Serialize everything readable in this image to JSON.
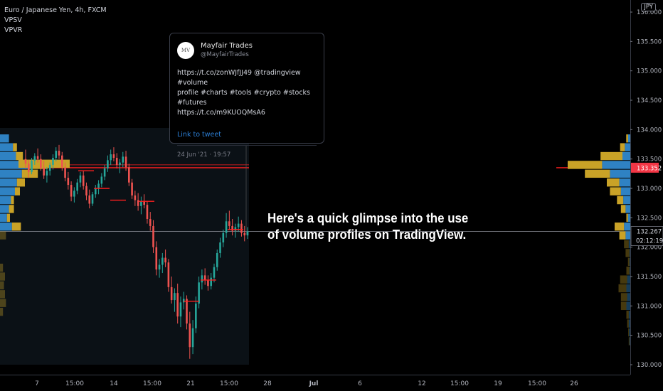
{
  "legend": {
    "symbol": "Euro / Japanese Yen, 4h, FXCM",
    "indicators": [
      "VPSV",
      "VPVR"
    ]
  },
  "axis": {
    "currency": "JPY"
  },
  "tweet": {
    "name": "Mayfair Trades",
    "handle": "@MayfairTrades",
    "avatar_text": "MV",
    "lines": [
      "https://t.co/zonWJfJJ49 @tradingview #volume",
      "profile #charts #tools #crypto #stocks #futures",
      "https://t.co/m9KUOQMsA6"
    ],
    "link": "Link to tweet",
    "date": "24 Jun '21 · 19:57"
  },
  "caption": {
    "line1": "Here's a quick glimpse into the use",
    "line2": "of volume profiles on TradingView."
  },
  "colors": {
    "up_volume": "#c9a227",
    "down_volume": "#2f82c3",
    "poc_line": "#ff1f1f",
    "price_line": "#9598a1",
    "background": "#000000"
  },
  "chart_data": {
    "type": "candlestick",
    "ylim": [
      129.95,
      136.15
    ],
    "y_ticks": [
      "136.000",
      "135.500",
      "135.000",
      "134.500",
      "134.000",
      "133.500",
      "133.000",
      "132.500",
      "132.000",
      "131.500",
      "131.000",
      "130.500",
      "130.000"
    ],
    "y_tick_values": [
      136.0,
      135.5,
      135.0,
      134.5,
      134.0,
      133.5,
      133.0,
      132.5,
      132.0,
      131.5,
      131.0,
      130.5,
      130.0
    ],
    "x_ticks": [
      "7",
      "15:00",
      "14",
      "15:00",
      "21",
      "15:00",
      "28",
      "Jul",
      "6",
      "12",
      "15:00",
      "19",
      "15:00",
      "26"
    ],
    "poc_price": 133.352,
    "poc_label": "133.352",
    "last_price": 132.267,
    "last_price_label": "132.267",
    "countdown": "02:12:19",
    "candles": [
      {
        "o": 133.5,
        "h": 133.66,
        "l": 133.34,
        "c": 133.42
      },
      {
        "o": 133.42,
        "h": 133.48,
        "l": 133.18,
        "c": 133.28
      },
      {
        "o": 133.28,
        "h": 133.52,
        "l": 133.24,
        "c": 133.47
      },
      {
        "o": 133.47,
        "h": 133.6,
        "l": 133.4,
        "c": 133.55
      },
      {
        "o": 133.55,
        "h": 133.68,
        "l": 133.44,
        "c": 133.5
      },
      {
        "o": 133.5,
        "h": 133.58,
        "l": 133.3,
        "c": 133.35
      },
      {
        "o": 133.35,
        "h": 133.47,
        "l": 133.16,
        "c": 133.22
      },
      {
        "o": 133.22,
        "h": 133.36,
        "l": 133.1,
        "c": 133.3
      },
      {
        "o": 133.3,
        "h": 133.44,
        "l": 133.22,
        "c": 133.4
      },
      {
        "o": 133.4,
        "h": 133.58,
        "l": 133.32,
        "c": 133.52
      },
      {
        "o": 133.52,
        "h": 133.7,
        "l": 133.46,
        "c": 133.64
      },
      {
        "o": 133.64,
        "h": 133.74,
        "l": 133.5,
        "c": 133.56
      },
      {
        "o": 133.56,
        "h": 133.62,
        "l": 133.3,
        "c": 133.36
      },
      {
        "o": 133.36,
        "h": 133.44,
        "l": 133.12,
        "c": 133.18
      },
      {
        "o": 133.18,
        "h": 133.28,
        "l": 132.98,
        "c": 133.06
      },
      {
        "o": 133.06,
        "h": 133.12,
        "l": 132.78,
        "c": 132.86
      },
      {
        "o": 132.86,
        "h": 133.02,
        "l": 132.76,
        "c": 132.96
      },
      {
        "o": 132.96,
        "h": 133.16,
        "l": 132.9,
        "c": 133.1
      },
      {
        "o": 133.1,
        "h": 133.28,
        "l": 133.02,
        "c": 133.22
      },
      {
        "o": 133.22,
        "h": 133.3,
        "l": 132.98,
        "c": 133.04
      },
      {
        "o": 133.04,
        "h": 133.1,
        "l": 132.8,
        "c": 132.88
      },
      {
        "o": 132.88,
        "h": 132.98,
        "l": 132.66,
        "c": 132.74
      },
      {
        "o": 132.74,
        "h": 132.94,
        "l": 132.7,
        "c": 132.9
      },
      {
        "o": 132.9,
        "h": 133.06,
        "l": 132.84,
        "c": 133.0
      },
      {
        "o": 133.0,
        "h": 133.14,
        "l": 132.9,
        "c": 133.08
      },
      {
        "o": 133.08,
        "h": 133.26,
        "l": 133.02,
        "c": 133.2
      },
      {
        "o": 133.2,
        "h": 133.4,
        "l": 133.14,
        "c": 133.34
      },
      {
        "o": 133.34,
        "h": 133.56,
        "l": 133.28,
        "c": 133.48
      },
      {
        "o": 133.48,
        "h": 133.66,
        "l": 133.4,
        "c": 133.58
      },
      {
        "o": 133.58,
        "h": 133.7,
        "l": 133.46,
        "c": 133.52
      },
      {
        "o": 133.52,
        "h": 133.6,
        "l": 133.34,
        "c": 133.4
      },
      {
        "o": 133.4,
        "h": 133.5,
        "l": 133.26,
        "c": 133.44
      },
      {
        "o": 133.44,
        "h": 133.62,
        "l": 133.36,
        "c": 133.54
      },
      {
        "o": 133.54,
        "h": 133.64,
        "l": 133.3,
        "c": 133.36
      },
      {
        "o": 133.36,
        "h": 133.42,
        "l": 133.04,
        "c": 133.1
      },
      {
        "o": 133.1,
        "h": 133.16,
        "l": 132.82,
        "c": 132.88
      },
      {
        "o": 132.88,
        "h": 132.96,
        "l": 132.7,
        "c": 132.8
      },
      {
        "o": 132.8,
        "h": 132.92,
        "l": 132.62,
        "c": 132.7
      },
      {
        "o": 132.7,
        "h": 132.86,
        "l": 132.56,
        "c": 132.78
      },
      {
        "o": 132.78,
        "h": 132.9,
        "l": 132.66,
        "c": 132.72
      },
      {
        "o": 132.72,
        "h": 132.78,
        "l": 132.4,
        "c": 132.48
      },
      {
        "o": 132.48,
        "h": 132.6,
        "l": 132.28,
        "c": 132.36
      },
      {
        "o": 132.36,
        "h": 132.46,
        "l": 131.9,
        "c": 132.0
      },
      {
        "o": 132.0,
        "h": 132.1,
        "l": 131.52,
        "c": 131.62
      },
      {
        "o": 131.62,
        "h": 131.8,
        "l": 131.48,
        "c": 131.7
      },
      {
        "o": 131.7,
        "h": 131.9,
        "l": 131.56,
        "c": 131.82
      },
      {
        "o": 131.82,
        "h": 131.96,
        "l": 131.66,
        "c": 131.74
      },
      {
        "o": 131.74,
        "h": 131.8,
        "l": 131.24,
        "c": 131.32
      },
      {
        "o": 131.32,
        "h": 131.5,
        "l": 131.04,
        "c": 131.1
      },
      {
        "o": 131.1,
        "h": 131.3,
        "l": 130.9,
        "c": 131.22
      },
      {
        "o": 131.22,
        "h": 131.38,
        "l": 130.7,
        "c": 130.82
      },
      {
        "o": 130.82,
        "h": 131.16,
        "l": 130.64,
        "c": 131.06
      },
      {
        "o": 131.06,
        "h": 131.24,
        "l": 130.94,
        "c": 131.12
      },
      {
        "o": 131.12,
        "h": 131.18,
        "l": 130.6,
        "c": 130.7
      },
      {
        "o": 130.7,
        "h": 130.9,
        "l": 130.1,
        "c": 130.3
      },
      {
        "o": 130.3,
        "h": 130.76,
        "l": 130.18,
        "c": 130.62
      },
      {
        "o": 130.62,
        "h": 131.16,
        "l": 130.54,
        "c": 131.04
      },
      {
        "o": 131.04,
        "h": 131.5,
        "l": 130.96,
        "c": 131.4
      },
      {
        "o": 131.4,
        "h": 131.62,
        "l": 131.28,
        "c": 131.52
      },
      {
        "o": 131.52,
        "h": 131.64,
        "l": 131.36,
        "c": 131.44
      },
      {
        "o": 131.44,
        "h": 131.52,
        "l": 131.26,
        "c": 131.34
      },
      {
        "o": 131.34,
        "h": 131.56,
        "l": 131.28,
        "c": 131.48
      },
      {
        "o": 131.48,
        "h": 131.72,
        "l": 131.4,
        "c": 131.66
      },
      {
        "o": 131.66,
        "h": 131.96,
        "l": 131.6,
        "c": 131.9
      },
      {
        "o": 131.9,
        "h": 132.16,
        "l": 131.82,
        "c": 132.08
      },
      {
        "o": 132.08,
        "h": 132.3,
        "l": 132.0,
        "c": 132.24
      },
      {
        "o": 132.24,
        "h": 132.58,
        "l": 132.16,
        "c": 132.44
      },
      {
        "o": 132.44,
        "h": 132.62,
        "l": 132.3,
        "c": 132.36
      },
      {
        "o": 132.36,
        "h": 132.48,
        "l": 132.2,
        "c": 132.28
      },
      {
        "o": 132.28,
        "h": 132.4,
        "l": 132.16,
        "c": 132.34
      },
      {
        "o": 132.34,
        "h": 132.52,
        "l": 132.26,
        "c": 132.4
      },
      {
        "o": 132.4,
        "h": 132.46,
        "l": 132.18,
        "c": 132.24
      },
      {
        "o": 132.24,
        "h": 132.36,
        "l": 132.1,
        "c": 132.2
      },
      {
        "o": 132.2,
        "h": 132.34,
        "l": 132.14,
        "c": 132.27
      }
    ],
    "volume_profile_left": [
      {
        "price": 133.85,
        "up": 0,
        "down": 0.9
      },
      {
        "price": 133.7,
        "up": 0.4,
        "down": 1.3
      },
      {
        "price": 133.55,
        "up": 0.7,
        "down": 1.6
      },
      {
        "price": 133.4,
        "up": 2.0,
        "down": 2.8
      },
      {
        "price": 133.25,
        "up": 1.6,
        "down": 2.2
      },
      {
        "price": 133.1,
        "up": 0.8,
        "down": 1.7
      },
      {
        "price": 132.95,
        "up": 0.5,
        "down": 1.5
      },
      {
        "price": 132.8,
        "up": 0.3,
        "down": 1.1
      },
      {
        "price": 132.65,
        "up": 0.5,
        "down": 0.9
      },
      {
        "price": 132.5,
        "up": 0.3,
        "down": 0.7
      },
      {
        "price": 132.35,
        "up": 0.9,
        "down": 1.2
      },
      {
        "price": 132.2,
        "up": 0.6,
        "down": 0
      },
      {
        "price": 131.65,
        "up": 0.3,
        "down": 0
      },
      {
        "price": 131.5,
        "up": 0.5,
        "down": 0
      },
      {
        "price": 131.35,
        "up": 0.4,
        "down": 0
      },
      {
        "price": 131.2,
        "up": 0.5,
        "down": 0
      },
      {
        "price": 131.05,
        "up": 0.6,
        "down": 0
      },
      {
        "price": 130.9,
        "up": 0.3,
        "down": 0
      }
    ],
    "volume_profile_right": [
      {
        "price": 133.85,
        "up": 0.12,
        "down": 0.14
      },
      {
        "price": 133.7,
        "up": 0.3,
        "down": 0.35
      },
      {
        "price": 133.55,
        "up": 1.4,
        "down": 0.5
      },
      {
        "price": 133.4,
        "up": 2.2,
        "down": 1.8
      },
      {
        "price": 133.25,
        "up": 1.6,
        "down": 1.3
      },
      {
        "price": 133.1,
        "up": 0.8,
        "down": 0.7
      },
      {
        "price": 132.95,
        "up": 0.7,
        "down": 0.6
      },
      {
        "price": 132.8,
        "up": 0.4,
        "down": 0.45
      },
      {
        "price": 132.65,
        "up": 0.3,
        "down": 0.3
      },
      {
        "price": 132.5,
        "up": 0.1,
        "down": 0.15
      },
      {
        "price": 132.35,
        "up": 0.6,
        "down": 0.4
      },
      {
        "price": 132.2,
        "up": 0.4,
        "down": 0.3
      },
      {
        "price": 132.05,
        "up": 0.3,
        "down": 0.1
      },
      {
        "price": 131.9,
        "up": 0.25,
        "down": 0.05
      },
      {
        "price": 131.75,
        "up": 0.1,
        "down": 0.05
      },
      {
        "price": 131.6,
        "up": 0.2,
        "down": 0.05
      },
      {
        "price": 131.45,
        "up": 0.45,
        "down": 0.2
      },
      {
        "price": 131.3,
        "up": 0.5,
        "down": 0.25
      },
      {
        "price": 131.15,
        "up": 0.4,
        "down": 0.2
      },
      {
        "price": 131.0,
        "up": 0.35,
        "down": 0.25
      },
      {
        "price": 130.85,
        "up": 0.15,
        "down": 0.1
      },
      {
        "price": 130.7,
        "up": 0.1,
        "down": 0.1
      },
      {
        "price": 130.55,
        "up": 0.05,
        "down": 0.08
      },
      {
        "price": 130.4,
        "up": 0.05,
        "down": 0.05
      }
    ]
  }
}
